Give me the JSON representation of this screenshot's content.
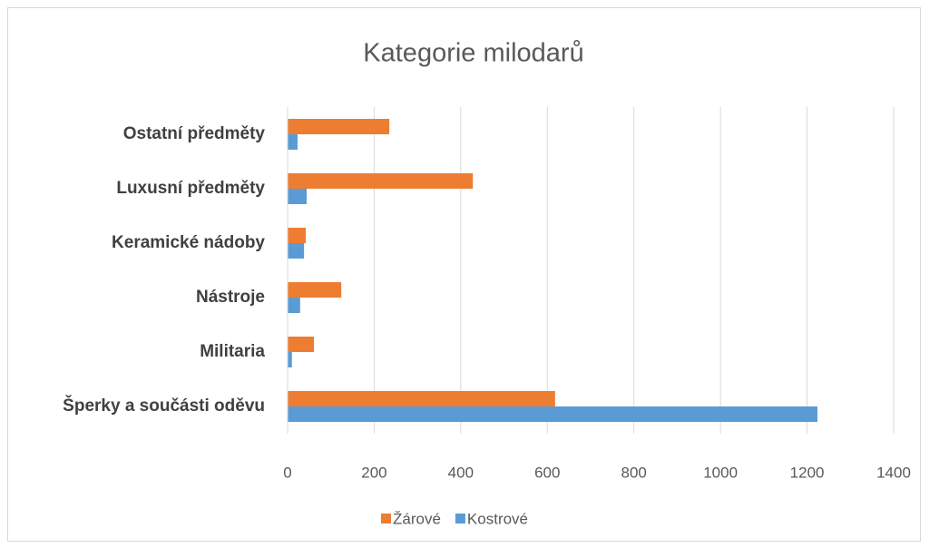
{
  "chart_data": {
    "type": "hbar",
    "title": "Kategorie milodarů",
    "categories": [
      "Šperky a součásti oděvu",
      "Militaria",
      "Nástroje",
      "Keramické nádoby",
      "Luxusní předměty",
      "Ostatní předměty"
    ],
    "series": [
      {
        "name": "Žárové",
        "color": "#ed7d31",
        "values": [
          618,
          61,
          124,
          42,
          428,
          235
        ]
      },
      {
        "name": "Kostrové",
        "color": "#5b9bd5",
        "values": [
          1224,
          10,
          29,
          38,
          44,
          23
        ]
      }
    ],
    "xlim": [
      0,
      1400
    ],
    "xticks": [
      0,
      200,
      400,
      600,
      800,
      1000,
      1200,
      1400
    ],
    "grid": true
  }
}
